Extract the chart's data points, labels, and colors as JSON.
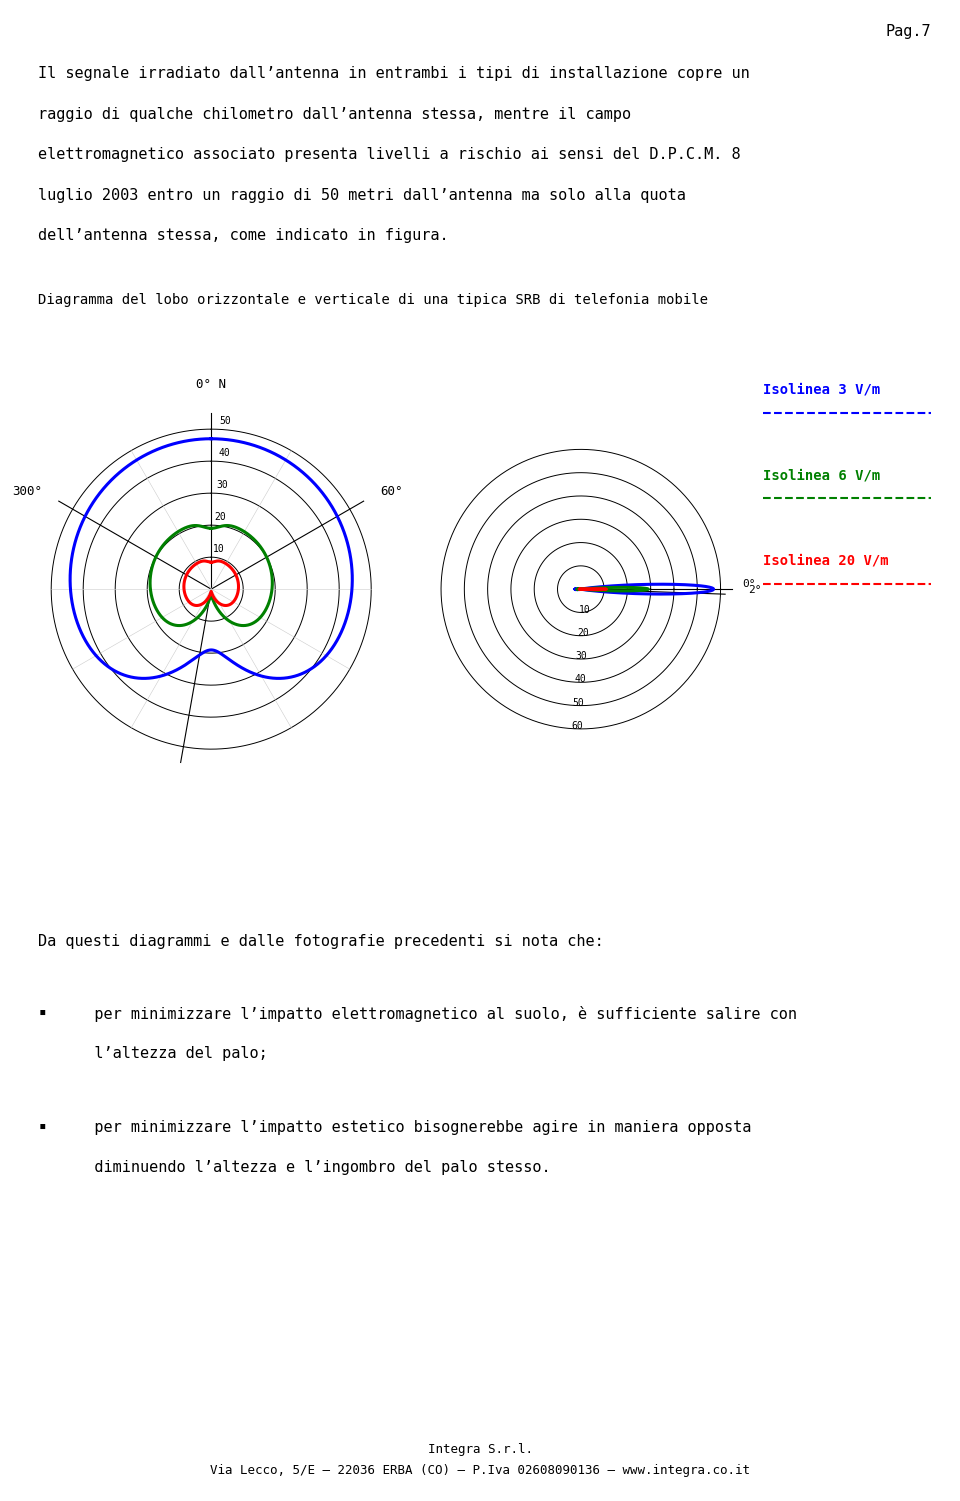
{
  "page_number": "Pag.7",
  "intro_text_lines": [
    "Il segnale irradiato dall’antenna in entrambi i tipi di installazione copre un",
    "raggio di qualche chilometro dall’antenna stessa, mentre il campo",
    "elettromagnetico associato presenta livelli a rischio ai sensi del D.P.C.M. 8",
    "luglio 2003 entro un raggio di 50 metri dall’antenna ma solo alla quota",
    "dell’antenna stessa, come indicato in figura."
  ],
  "diagram_caption": "Diagramma del lobo orizzontale e verticale di una tipica SRB di telefonia mobile",
  "legend_items": [
    {
      "label": "Isolinea 3 V/m",
      "color": "#0000FF"
    },
    {
      "label": "Isolinea 6 V/m",
      "color": "#008000"
    },
    {
      "label": "Isolinea 20 V/m",
      "color": "#FF0000"
    }
  ],
  "da_questi_text": "Da questi diagrammi e dalle fotografie precedenti si nota che:",
  "bullet1_line1": "   per minimizzare l’impatto elettromagnetico al suolo, è sufficiente salire con",
  "bullet1_line2": "   l’altezza del palo;",
  "bullet2_line1": "   per minimizzare l’impatto estetico bisognerebbe agire in maniera opposta",
  "bullet2_line2": "   diminuendo l’altezza e l’ingombro del palo stesso.",
  "footer_line1": "Integra S.r.l.",
  "footer_line2": "Via Lecco, 5/E – 22036 ERBA (CO) – P.Iva 02608090136 – www.integra.co.it",
  "blue": "#0000FF",
  "green": "#008000",
  "red": "#FF0000",
  "black": "#000000"
}
